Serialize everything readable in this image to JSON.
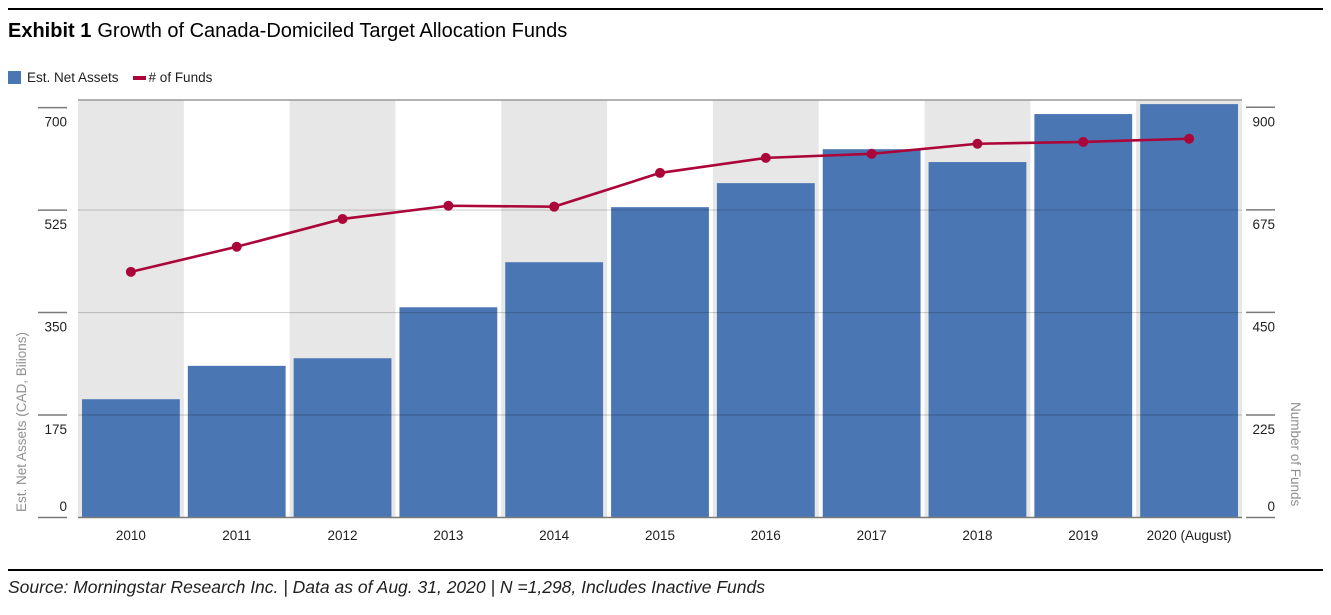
{
  "header": {
    "exhibit_label": "Exhibit 1",
    "title": "Growth of Canada-Domiciled Target Allocation Funds"
  },
  "legend": {
    "items": [
      {
        "label": "Est. Net Assets",
        "swatch": "square",
        "color": "#4a77b4"
      },
      {
        "label": "# of Funds",
        "swatch": "dash",
        "color": "#ab0639"
      }
    ]
  },
  "chart_data": {
    "type": "combo",
    "title": "Growth of Canada-Domiciled Target Allocation Funds",
    "categories": [
      "2010",
      "2011",
      "2012",
      "2013",
      "2014",
      "2015",
      "2016",
      "2017",
      "2018",
      "2019",
      "2020 (August)"
    ],
    "series": [
      {
        "name": "Est. Net Assets",
        "chart": "bar",
        "axis": "left",
        "color": "#4a77b4",
        "values": [
          202,
          259,
          272,
          359,
          436,
          530,
          571,
          629,
          607,
          689,
          706
        ]
      },
      {
        "name": "# of Funds",
        "chart": "line",
        "axis": "right",
        "color": "#ab0639",
        "values": [
          539,
          594,
          655,
          684,
          682,
          756,
          789,
          798,
          820,
          824,
          831
        ]
      }
    ],
    "left_axis": {
      "title": "Est. Net Assets (CAD, Bilions)",
      "ticks": [
        0,
        175,
        350,
        525,
        700
      ],
      "ylim": [
        0,
        713
      ]
    },
    "right_axis": {
      "title": "Number of Funds",
      "ticks": [
        0,
        225,
        450,
        675,
        900
      ],
      "ylim": [
        0,
        916
      ]
    },
    "layout": {
      "column_stripes": "alternating vertical bands, shaded on even-index columns",
      "stripe_color": "#e7e7e7",
      "gridlines": "horizontal at interior axis ticks, drawn over bars",
      "legend_position": "top-left"
    }
  },
  "footer": {
    "source_note": "Source: Morningstar Research Inc.  |  Data as of Aug. 31, 2020  |  N =1,298, Includes Inactive Funds"
  }
}
